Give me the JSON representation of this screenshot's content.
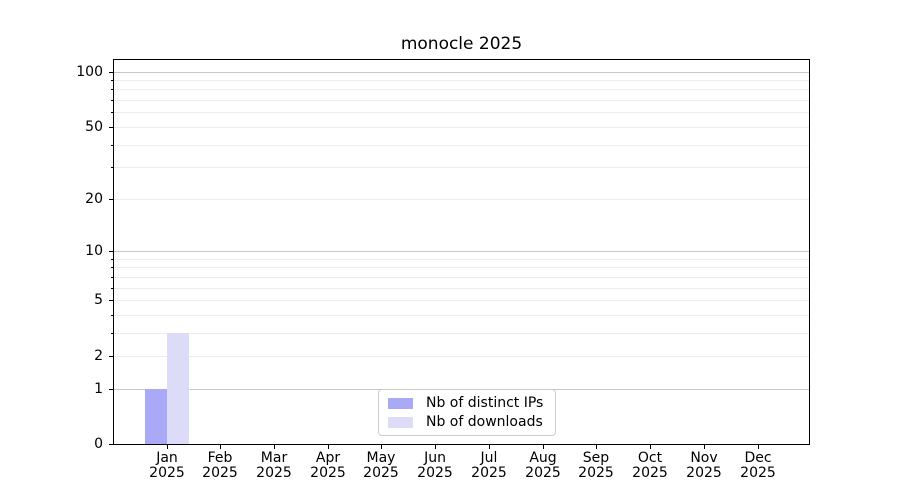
{
  "chart_data": {
    "type": "bar",
    "title": "monocle 2025",
    "scale": "log1p",
    "grid": "horizontal",
    "categories": [
      {
        "month": "Jan",
        "year": "2025"
      },
      {
        "month": "Feb",
        "year": "2025"
      },
      {
        "month": "Mar",
        "year": "2025"
      },
      {
        "month": "Apr",
        "year": "2025"
      },
      {
        "month": "May",
        "year": "2025"
      },
      {
        "month": "Jun",
        "year": "2025"
      },
      {
        "month": "Jul",
        "year": "2025"
      },
      {
        "month": "Aug",
        "year": "2025"
      },
      {
        "month": "Sep",
        "year": "2025"
      },
      {
        "month": "Oct",
        "year": "2025"
      },
      {
        "month": "Nov",
        "year": "2025"
      },
      {
        "month": "Dec",
        "year": "2025"
      }
    ],
    "series": [
      {
        "name": "Nb of distinct IPs",
        "color": "#a9a9f7",
        "values": [
          1,
          0,
          0,
          0,
          0,
          0,
          0,
          0,
          0,
          0,
          0,
          0
        ]
      },
      {
        "name": "Nb of downloads",
        "color": "#dcdcf8",
        "values": [
          3,
          0,
          0,
          0,
          0,
          0,
          0,
          0,
          0,
          0,
          0,
          0
        ]
      }
    ],
    "y_axis": {
      "tick_values": [
        0,
        1,
        2,
        5,
        10,
        20,
        50,
        100
      ],
      "tick_labels": [
        "0",
        "1",
        "2",
        "5",
        "10",
        "20",
        "50",
        "100"
      ],
      "minor_grid_values": [
        3,
        4,
        6,
        7,
        8,
        9,
        30,
        40,
        60,
        70,
        80,
        90
      ],
      "decade_grid_values": [
        1,
        10,
        100
      ],
      "ylim": [
        0,
        117
      ]
    },
    "legend": {
      "location": "lower center",
      "entries": [
        "Nb of distinct IPs",
        "Nb of downloads"
      ]
    },
    "colors": {
      "grid_major": "#c8c8c8",
      "grid_minor": "#ececec",
      "spine": "#000000",
      "background": "#ffffff",
      "legend_border": "#cccccc",
      "text": "#000000"
    }
  }
}
